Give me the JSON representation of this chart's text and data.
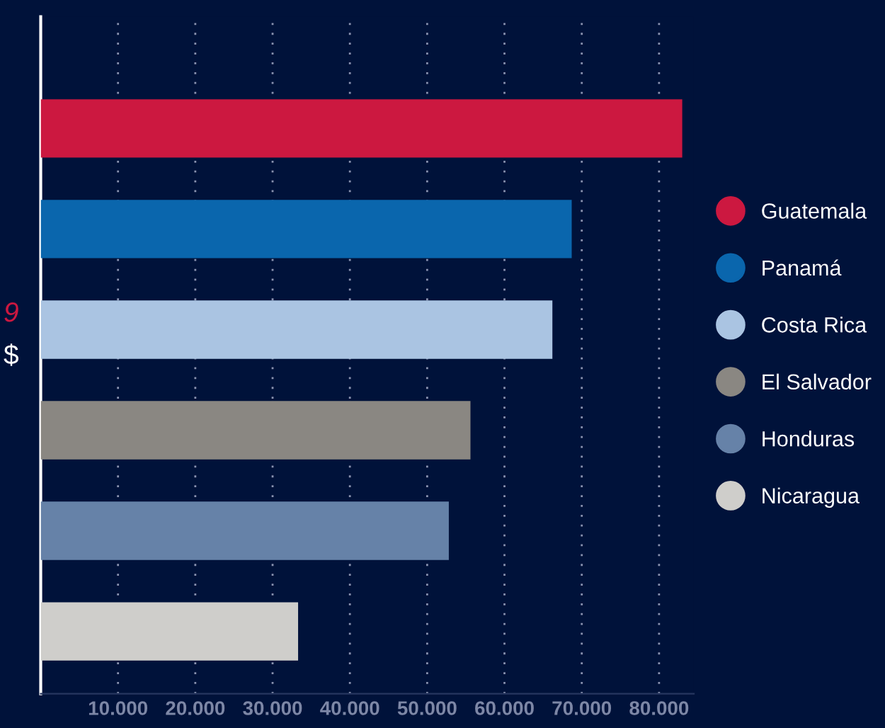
{
  "chart_data": {
    "type": "bar",
    "orientation": "horizontal",
    "categories": [
      null,
      null,
      null,
      null,
      null,
      null
    ],
    "series": [
      {
        "name": "Guatemala",
        "color": "#cc1840",
        "values": [
          83000,
          null,
          null,
          null,
          null,
          null
        ]
      },
      {
        "name": "Panamá",
        "color": "#0a66ad",
        "values": [
          null,
          68700,
          null,
          null,
          null,
          null
        ]
      },
      {
        "name": "Costa Rica",
        "color": "#aac4e2",
        "values": [
          null,
          null,
          66200,
          null,
          null,
          null
        ]
      },
      {
        "name": "El Salvador",
        "color": "#8a8782",
        "values": [
          null,
          null,
          null,
          55600,
          null,
          null
        ]
      },
      {
        "name": "Honduras",
        "color": "#6682a8",
        "values": [
          null,
          null,
          null,
          null,
          52800,
          null
        ]
      },
      {
        "name": "Nicaragua",
        "color": "#cfcecb",
        "values": [
          null,
          null,
          null,
          null,
          null,
          33300
        ]
      }
    ],
    "xlim": [
      0,
      84500
    ],
    "xticks": [
      {
        "value": 10000,
        "label": "10.000"
      },
      {
        "value": 20000,
        "label": "20.000"
      },
      {
        "value": 30000,
        "label": "30.000"
      },
      {
        "value": 40000,
        "label": "40.000"
      },
      {
        "value": 50000,
        "label": "50.000"
      },
      {
        "value": 60000,
        "label": "60.000"
      },
      {
        "value": 70000,
        "label": "70.000"
      },
      {
        "value": 80000,
        "label": "80.000"
      }
    ],
    "tick_labels": "x",
    "grid": "x",
    "legend": "right",
    "marker": "circle",
    "annotations": [
      "9",
      "$"
    ]
  }
}
